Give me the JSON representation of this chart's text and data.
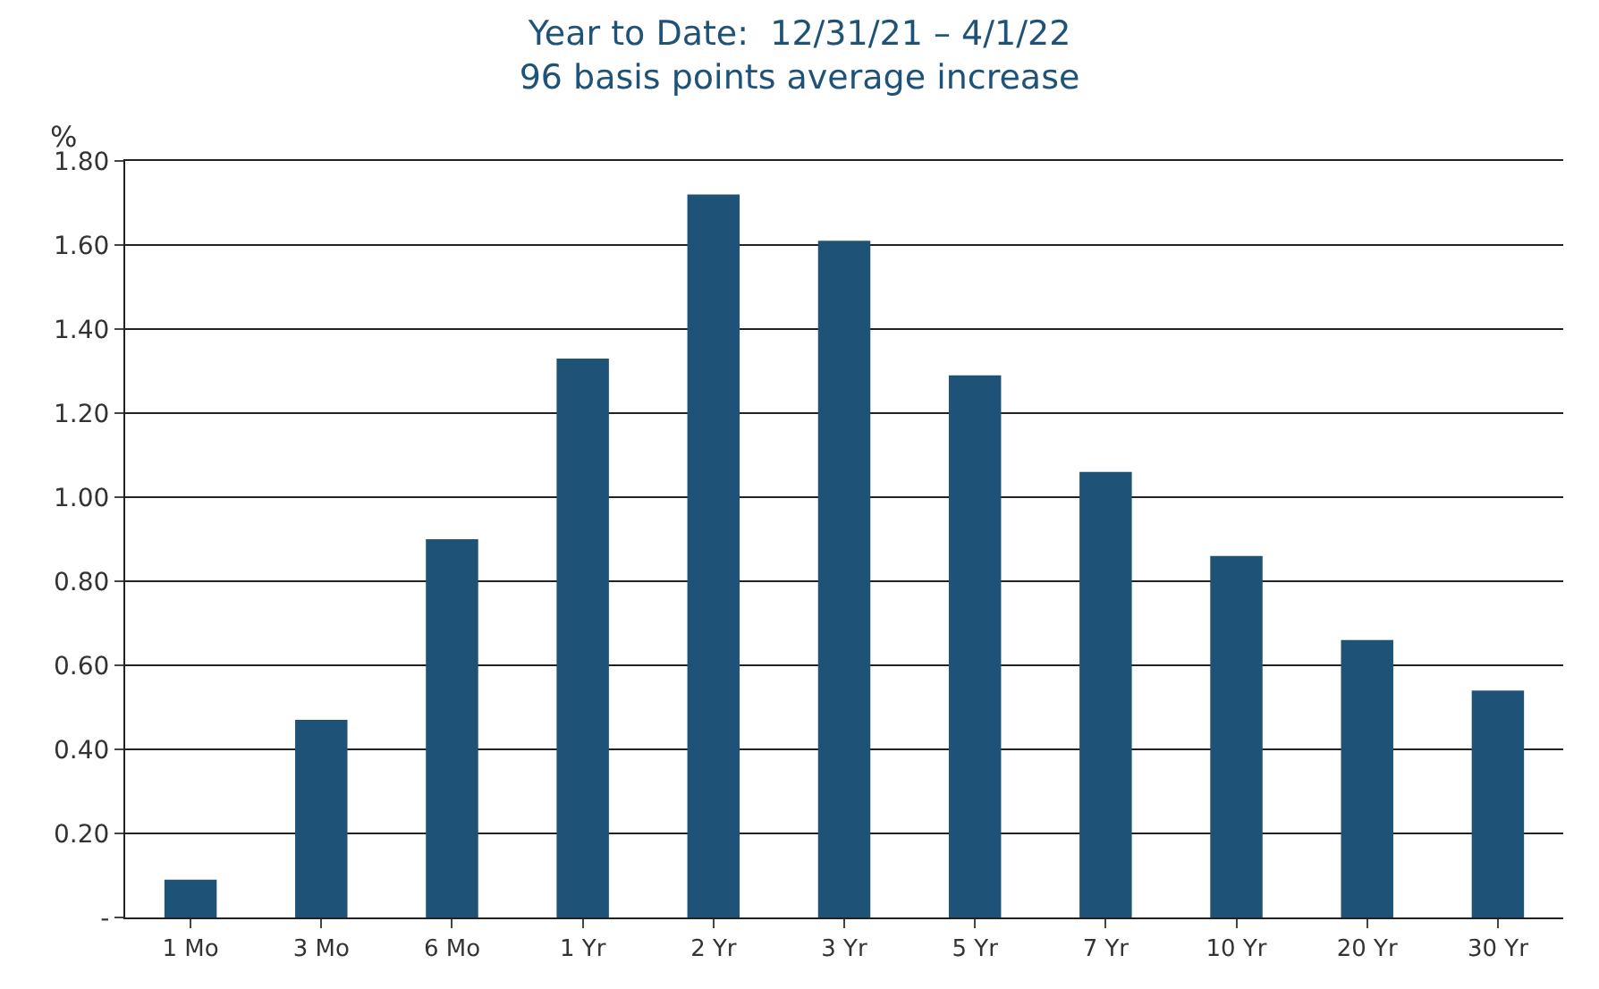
{
  "chart_data": {
    "type": "bar",
    "title": "Year to Date:  12/31/21 – 4/1/22",
    "subtitle": "96 basis points average increase",
    "ylabel": "%",
    "categories": [
      "1 Mo",
      "3 Mo",
      "6 Mo",
      "1 Yr",
      "2 Yr",
      "3 Yr",
      "5 Yr",
      "7 Yr",
      "10 Yr",
      "20 Yr",
      "30 Yr"
    ],
    "values": [
      0.09,
      0.47,
      0.9,
      1.33,
      1.72,
      1.61,
      1.29,
      1.06,
      0.86,
      0.66,
      0.54
    ],
    "color": "#1f5277",
    "ylim": [
      0,
      1.8
    ],
    "yticks": [
      {
        "value": 0,
        "label": "-"
      },
      {
        "value": 0.2,
        "label": "0.20"
      },
      {
        "value": 0.4,
        "label": "0.40"
      },
      {
        "value": 0.6,
        "label": "0.60"
      },
      {
        "value": 0.8,
        "label": "0.80"
      },
      {
        "value": 1.0,
        "label": "1.00"
      },
      {
        "value": 1.2,
        "label": "1.20"
      },
      {
        "value": 1.4,
        "label": "1.40"
      },
      {
        "value": 1.6,
        "label": "1.60"
      },
      {
        "value": 1.8,
        "label": "1.80"
      }
    ],
    "grid": "y"
  }
}
